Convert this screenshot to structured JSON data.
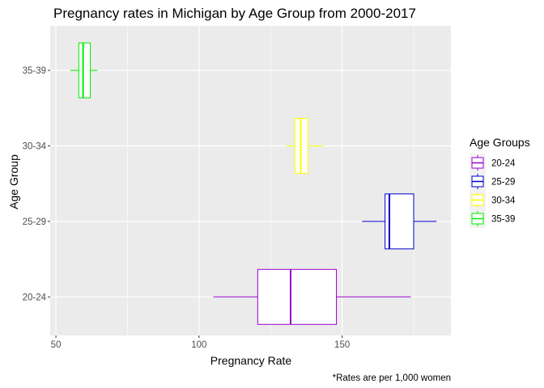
{
  "chart_data": {
    "type": "boxplot",
    "title": "Pregnancy rates in Michigan by Age Group from 2000-2017",
    "xlabel": "Pregnancy Rate",
    "ylabel": "Age Group",
    "caption": "*Rates are per 1,000 women",
    "xlim": [
      48,
      188
    ],
    "x_ticks": [
      50,
      100,
      150
    ],
    "x_minor_ticks": [
      75,
      125,
      175
    ],
    "categories": [
      "20-24",
      "25-29",
      "30-34",
      "35-39"
    ],
    "grid": true,
    "background": "#ebebeb",
    "legend": {
      "title": "Age Groups",
      "position": "right"
    },
    "series": [
      {
        "name": "20-24",
        "color": "#9900cc",
        "whisker_low": 105,
        "q1": 120.5,
        "median": 132,
        "q3": 148,
        "whisker_high": 174
      },
      {
        "name": "25-29",
        "color": "#0000cc",
        "whisker_low": 157,
        "q1": 165,
        "median": 166.5,
        "q3": 175,
        "whisker_high": 183
      },
      {
        "name": "30-34",
        "color": "#ffff00",
        "whisker_low": 130.5,
        "q1": 133.5,
        "median": 135.5,
        "q3": 138,
        "whisker_high": 143.5
      },
      {
        "name": "35-39",
        "color": "#00ee00",
        "whisker_low": 55,
        "q1": 58,
        "median": 59.5,
        "q3": 62,
        "whisker_high": 64.5
      }
    ]
  }
}
